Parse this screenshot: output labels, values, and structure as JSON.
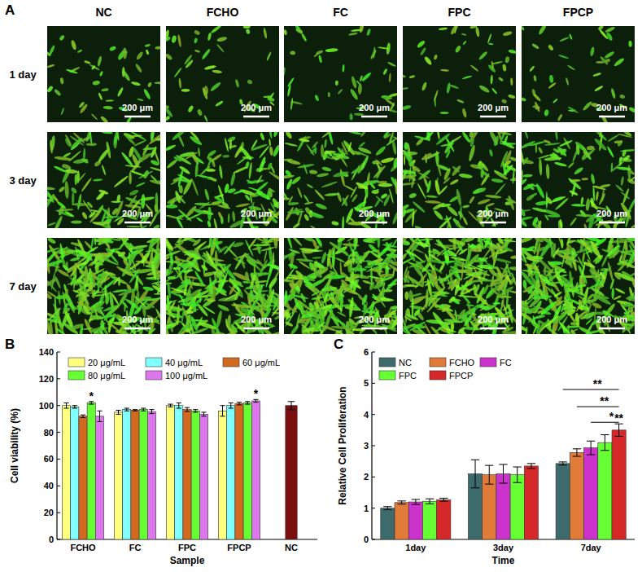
{
  "chart_data": [
    {
      "type": "image_grid",
      "label": "A",
      "columns": [
        "NC",
        "FCHO",
        "FC",
        "FPC",
        "FPCP"
      ],
      "rows": [
        "1 day",
        "3 day",
        "7 day"
      ],
      "scale_bar": "200 μm"
    },
    {
      "type": "bar",
      "label": "B",
      "x_label": "Sample",
      "y_label": "Cell viability (%)",
      "categories": [
        "FCHO",
        "FC",
        "FPC",
        "FPCP",
        "NC"
      ],
      "series": [
        {
          "name": "20 μg/mL",
          "color": "#ffff80",
          "values": [
            100,
            95,
            100,
            96,
            null
          ],
          "errors": [
            2,
            1.5,
            1,
            4,
            null
          ]
        },
        {
          "name": "40 μg/mL",
          "color": "#80ffff",
          "values": [
            99,
            97,
            100,
            100,
            null
          ],
          "errors": [
            1,
            1,
            2,
            2,
            null
          ]
        },
        {
          "name": "60 μg/mL",
          "color": "#d2691e",
          "values": [
            92,
            96.5,
            97,
            101.5,
            null
          ],
          "errors": [
            1,
            0.5,
            1.5,
            1,
            null
          ]
        },
        {
          "name": "80 μg/mL",
          "color": "#66ff33",
          "values": [
            102,
            97,
            96,
            102,
            null
          ],
          "errors": [
            1,
            1,
            1,
            1,
            null
          ]
        },
        {
          "name": "100 μg/mL",
          "color": "#dd77ee",
          "values": [
            92,
            95.5,
            93.5,
            103.5,
            null
          ],
          "errors": [
            4,
            1.5,
            1.5,
            1,
            null
          ]
        }
      ],
      "control": {
        "value": 100,
        "error": 3,
        "color": "#7b0f0f"
      },
      "annotations": [
        {
          "text": "*",
          "series": 3,
          "category": 0
        },
        {
          "text": "*",
          "series": 4,
          "category": 3
        }
      ],
      "ylim": [
        0,
        140
      ],
      "yticks": [
        0,
        20,
        40,
        60,
        80,
        100,
        120,
        140
      ],
      "legend": "top"
    },
    {
      "type": "bar",
      "label": "C",
      "x_label": "Time",
      "y_label": "Relative Cell Proliferation",
      "categories": [
        "1day",
        "3day",
        "7day"
      ],
      "series": [
        {
          "name": "NC",
          "color": "#3d6b6b",
          "values": [
            1.0,
            2.1,
            2.43
          ],
          "errors": [
            0.05,
            0.45,
            0.05
          ]
        },
        {
          "name": "FCHO",
          "color": "#e07b39",
          "values": [
            1.18,
            2.07,
            2.78
          ],
          "errors": [
            0.05,
            0.3,
            0.12
          ]
        },
        {
          "name": "FC",
          "color": "#cc33cc",
          "values": [
            1.2,
            2.1,
            2.93
          ],
          "errors": [
            0.08,
            0.3,
            0.22
          ]
        },
        {
          "name": "FPC",
          "color": "#66ff33",
          "values": [
            1.22,
            2.07,
            3.1
          ],
          "errors": [
            0.08,
            0.25,
            0.25
          ]
        },
        {
          "name": "FPCP",
          "color": "#d62828",
          "values": [
            1.27,
            2.35,
            3.5
          ],
          "errors": [
            0.05,
            0.08,
            0.2
          ]
        }
      ],
      "annotations": [
        {
          "text": "**",
          "from": 0,
          "to": 4,
          "category": 2,
          "y": 4.8
        },
        {
          "text": "**",
          "from": 1,
          "to": 4,
          "category": 2,
          "y": 4.25
        },
        {
          "text": "*",
          "from": 2,
          "to": 4,
          "category": 2,
          "y": 3.75
        },
        {
          "text": "**",
          "series": 4,
          "category": 2
        }
      ],
      "ylim": [
        0,
        6
      ],
      "yticks": [
        0,
        1,
        2,
        3,
        4,
        5,
        6
      ],
      "legend": "top-left"
    }
  ]
}
